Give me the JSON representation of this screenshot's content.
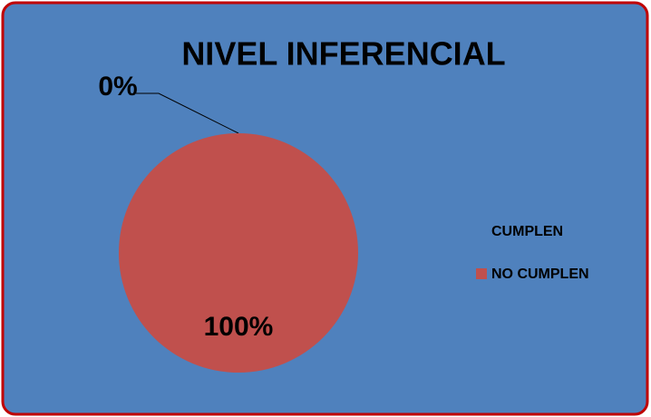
{
  "chart_data": {
    "type": "pie",
    "title": "NIVEL INFERENCIAL",
    "categories": [
      "CUMPLEN",
      "NO CUMPLEN"
    ],
    "values": [
      0,
      100
    ],
    "value_labels": [
      "0%",
      "100%"
    ],
    "colors": [
      "#4f81bd",
      "#c0504d"
    ],
    "legend": "right"
  }
}
